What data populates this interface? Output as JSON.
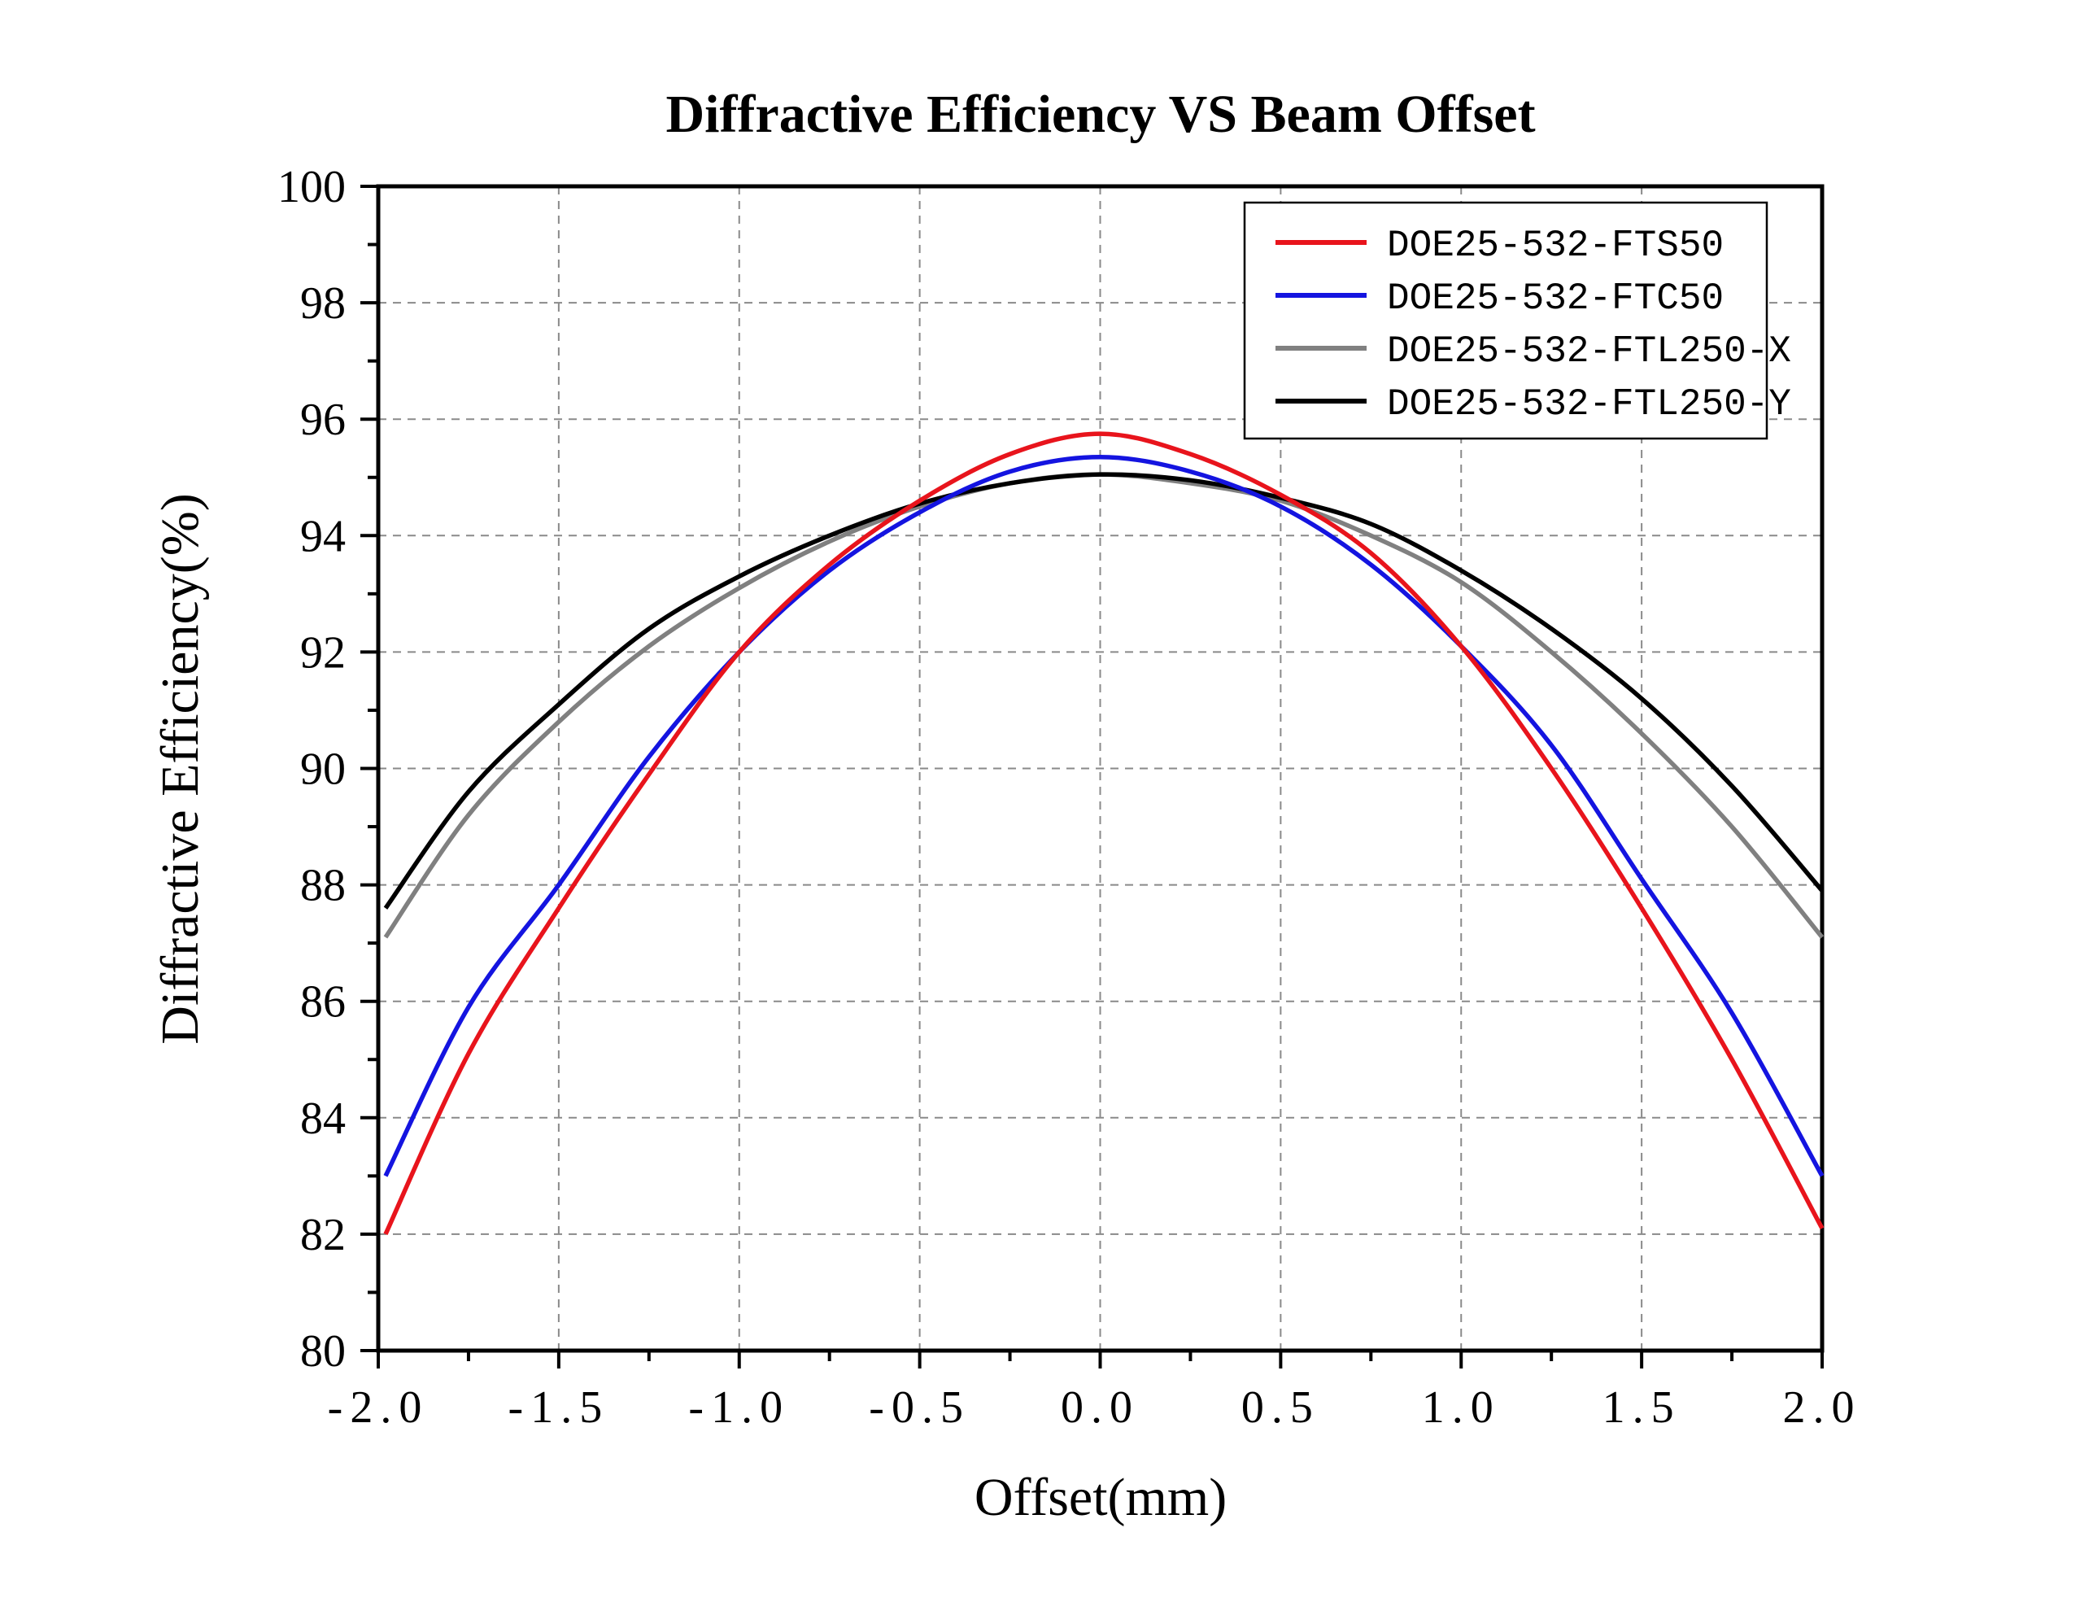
{
  "chart_data": {
    "type": "line",
    "title": "Diffractive Efficiency VS Beam Offset",
    "xlabel": "Offset(mm)",
    "ylabel": "Diffractive Efficiency(%)",
    "xlim": [
      -2.0,
      2.0
    ],
    "ylim": [
      80,
      100
    ],
    "x_ticks": [
      -2.0,
      -1.5,
      -1.0,
      -0.5,
      0.0,
      0.5,
      1.0,
      1.5,
      2.0
    ],
    "x_tick_labels": [
      "-2.0",
      "-1.5",
      "-1.0",
      "-0.5",
      "0.0",
      "0.5",
      "1.0",
      "1.5",
      "2.0"
    ],
    "y_ticks": [
      80,
      82,
      84,
      86,
      88,
      90,
      92,
      94,
      96,
      98,
      100
    ],
    "y_tick_labels": [
      "80",
      "82",
      "84",
      "86",
      "88",
      "90",
      "92",
      "94",
      "96",
      "98",
      "100"
    ],
    "grid": true,
    "legend_position": "top-right",
    "x": [
      -2.0,
      -1.75,
      -1.5,
      -1.25,
      -1.0,
      -0.75,
      -0.5,
      -0.25,
      0.0,
      0.25,
      0.5,
      0.75,
      1.0,
      1.25,
      1.5,
      1.75,
      2.0
    ],
    "series": [
      {
        "name": "DOE25-532-FTS50",
        "color": "#e8141c",
        "values": [
          82.0,
          85.1,
          87.6,
          89.9,
          92.0,
          93.5,
          94.6,
          95.4,
          95.75,
          95.4,
          94.7,
          93.7,
          92.1,
          90.0,
          87.6,
          85.0,
          82.1
        ]
      },
      {
        "name": "DOE25-532-FTC50",
        "color": "#1414e0",
        "values": [
          83.0,
          85.9,
          88.0,
          90.2,
          92.0,
          93.4,
          94.4,
          95.1,
          95.35,
          95.1,
          94.5,
          93.5,
          92.1,
          90.4,
          88.1,
          85.8,
          83.0
        ]
      },
      {
        "name": "DOE25-532-FTL250-X",
        "color": "#808080",
        "values": [
          87.1,
          89.2,
          90.8,
          92.1,
          93.1,
          93.9,
          94.5,
          94.9,
          95.05,
          94.9,
          94.6,
          94.0,
          93.2,
          92.0,
          90.6,
          89.0,
          87.1
        ]
      },
      {
        "name": "DOE25-532-FTL250-Y",
        "color": "#000000",
        "values": [
          87.6,
          89.6,
          91.1,
          92.4,
          93.3,
          94.0,
          94.55,
          94.9,
          95.05,
          94.95,
          94.65,
          94.2,
          93.4,
          92.4,
          91.2,
          89.7,
          87.9
        ]
      }
    ]
  }
}
